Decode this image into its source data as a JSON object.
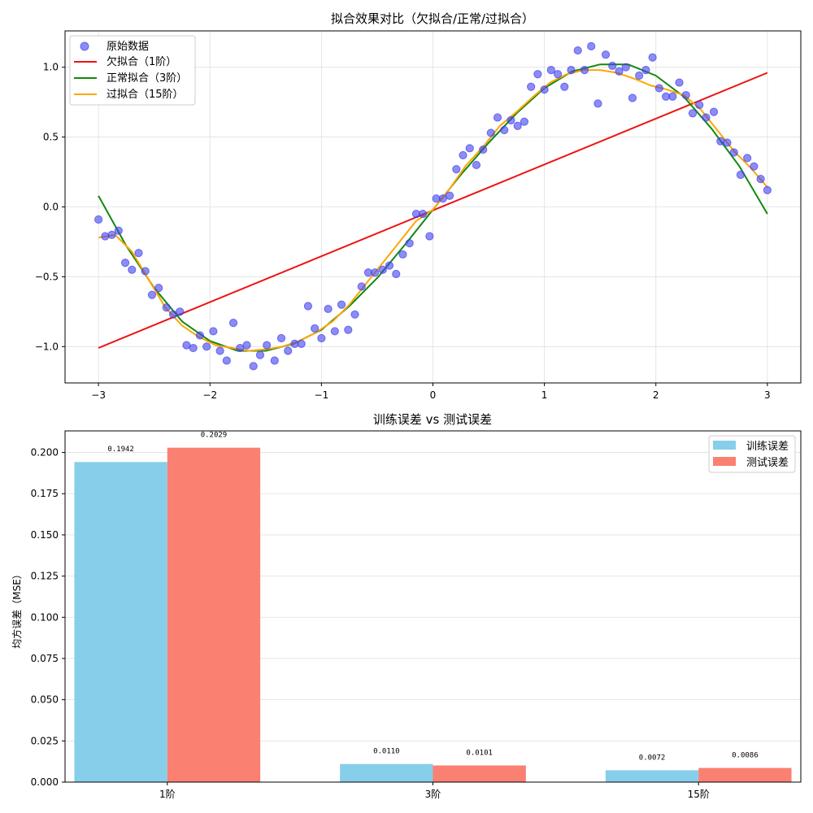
{
  "chart_data": [
    {
      "type": "scatter",
      "title": "拟合效果对比（欠拟合/正常/过拟合）",
      "xlabel": "",
      "ylabel": "",
      "xlim": [
        -3.3,
        3.3
      ],
      "ylim": [
        -1.26,
        1.26
      ],
      "xticks": [
        -3,
        -2,
        -1,
        0,
        1,
        2,
        3
      ],
      "xtick_labels": [
        "−3",
        "−2",
        "−1",
        "0",
        "1",
        "2",
        "3"
      ],
      "yticks": [
        -1.0,
        -0.5,
        0.0,
        0.5,
        1.0
      ],
      "ytick_labels": [
        "−1.0",
        "−0.5",
        "0.0",
        "0.5",
        "1.0"
      ],
      "grid": true,
      "legend_position": "top-left",
      "scatter": {
        "name": "原始数据",
        "color": "#4040ee",
        "x": [
          -3.0,
          -2.94,
          -2.88,
          -2.82,
          -2.76,
          -2.7,
          -2.64,
          -2.58,
          -2.52,
          -2.46,
          -2.39,
          -2.33,
          -2.27,
          -2.21,
          -2.15,
          -2.09,
          -2.03,
          -1.97,
          -1.91,
          -1.85,
          -1.79,
          -1.73,
          -1.67,
          -1.61,
          -1.55,
          -1.49,
          -1.42,
          -1.36,
          -1.3,
          -1.24,
          -1.18,
          -1.12,
          -1.06,
          -1.0,
          -0.94,
          -0.88,
          -0.82,
          -0.76,
          -0.7,
          -0.64,
          -0.58,
          -0.52,
          -0.45,
          -0.39,
          -0.33,
          -0.27,
          -0.21,
          -0.15,
          -0.09,
          -0.03,
          0.03,
          0.09,
          0.15,
          0.21,
          0.27,
          0.33,
          0.39,
          0.45,
          0.52,
          0.58,
          0.64,
          0.7,
          0.76,
          0.82,
          0.88,
          0.94,
          1.0,
          1.06,
          1.12,
          1.18,
          1.24,
          1.3,
          1.36,
          1.42,
          1.48,
          1.55,
          1.61,
          1.67,
          1.73,
          1.79,
          1.85,
          1.91,
          1.97,
          2.03,
          2.09,
          2.15,
          2.21,
          2.27,
          2.33,
          2.39,
          2.45,
          2.52,
          2.58,
          2.64,
          2.7,
          2.76,
          2.82,
          2.88,
          2.94,
          3.0
        ],
        "y": [
          -0.09,
          -0.21,
          -0.2,
          -0.17,
          -0.4,
          -0.45,
          -0.33,
          -0.46,
          -0.63,
          -0.58,
          -0.72,
          -0.77,
          -0.75,
          -0.99,
          -1.01,
          -0.92,
          -1.0,
          -0.89,
          -1.03,
          -1.1,
          -0.83,
          -1.01,
          -0.99,
          -1.14,
          -1.06,
          -0.99,
          -1.1,
          -0.94,
          -1.03,
          -0.98,
          -0.98,
          -0.71,
          -0.87,
          -0.94,
          -0.73,
          -0.89,
          -0.7,
          -0.88,
          -0.77,
          -0.57,
          -0.47,
          -0.47,
          -0.45,
          -0.42,
          -0.48,
          -0.34,
          -0.26,
          -0.05,
          -0.05,
          -0.21,
          0.06,
          0.06,
          0.08,
          0.27,
          0.37,
          0.42,
          0.3,
          0.41,
          0.53,
          0.64,
          0.55,
          0.62,
          0.58,
          0.61,
          0.86,
          0.95,
          0.84,
          0.98,
          0.95,
          0.86,
          0.98,
          1.12,
          0.98,
          1.15,
          0.74,
          1.09,
          1.01,
          0.97,
          1.0,
          0.78,
          0.94,
          0.98,
          1.07,
          0.85,
          0.79,
          0.79,
          0.89,
          0.8,
          0.67,
          0.73,
          0.64,
          0.68,
          0.47,
          0.46,
          0.39,
          0.23,
          0.35,
          0.29,
          0.2,
          0.12
        ]
      },
      "series": [
        {
          "name": "欠拟合（1阶）",
          "color": "#ee1111",
          "x": [
            -3.0,
            3.0
          ],
          "y": [
            -1.01,
            0.96
          ]
        },
        {
          "name": "正常拟合（3阶）",
          "color": "#118811",
          "x": [
            -3.0,
            -2.75,
            -2.5,
            -2.25,
            -2.0,
            -1.75,
            -1.5,
            -1.25,
            -1.0,
            -0.75,
            -0.5,
            -0.25,
            0.0,
            0.25,
            0.5,
            0.75,
            1.0,
            1.25,
            1.5,
            1.75,
            2.0,
            2.25,
            2.5,
            2.75,
            3.0
          ],
          "y": [
            0.08,
            -0.28,
            -0.58,
            -0.82,
            -0.96,
            -1.03,
            -1.03,
            -0.98,
            -0.88,
            -0.71,
            -0.51,
            -0.27,
            -0.02,
            0.23,
            0.46,
            0.67,
            0.85,
            0.97,
            1.02,
            1.02,
            0.94,
            0.79,
            0.56,
            0.29,
            -0.05
          ]
        },
        {
          "name": "过拟合（15阶）",
          "color": "#ffa500",
          "x": [
            -3.0,
            -2.85,
            -2.7,
            -2.55,
            -2.4,
            -2.25,
            -2.1,
            -1.95,
            -1.8,
            -1.65,
            -1.5,
            -1.35,
            -1.2,
            -1.05,
            -0.9,
            -0.75,
            -0.6,
            -0.45,
            -0.3,
            -0.15,
            0.0,
            0.15,
            0.3,
            0.45,
            0.6,
            0.75,
            0.9,
            1.05,
            1.2,
            1.35,
            1.5,
            1.65,
            1.8,
            1.95,
            2.1,
            2.25,
            2.4,
            2.55,
            2.7,
            2.85,
            3.0
          ],
          "y": [
            -0.22,
            -0.2,
            -0.32,
            -0.52,
            -0.72,
            -0.85,
            -0.93,
            -0.99,
            -1.01,
            -1.03,
            -1.02,
            -1.0,
            -0.96,
            -0.9,
            -0.82,
            -0.7,
            -0.55,
            -0.4,
            -0.25,
            -0.1,
            -0.02,
            0.13,
            0.3,
            0.43,
            0.58,
            0.68,
            0.79,
            0.89,
            0.95,
            0.98,
            0.98,
            0.96,
            0.92,
            0.87,
            0.84,
            0.8,
            0.7,
            0.55,
            0.4,
            0.28,
            0.14
          ]
        }
      ]
    },
    {
      "type": "bar",
      "title": "训练误差 vs 测试误差",
      "xlabel": "",
      "ylabel": "均方误差（MSE）",
      "ylim": [
        0,
        0.2131
      ],
      "yticks": [
        0.0,
        0.025,
        0.05,
        0.075,
        0.1,
        0.125,
        0.15,
        0.175,
        0.2
      ],
      "ytick_labels": [
        "0.000",
        "0.025",
        "0.050",
        "0.075",
        "0.100",
        "0.125",
        "0.150",
        "0.175",
        "0.200"
      ],
      "grid": true,
      "legend_position": "top-right",
      "categories": [
        "1阶",
        "3阶",
        "15阶"
      ],
      "series": [
        {
          "name": "训练误差",
          "color": "#87ceeb",
          "values": [
            0.1942,
            0.011,
            0.0072
          ],
          "labels": [
            "0.1942",
            "0.0110",
            "0.0072"
          ]
        },
        {
          "name": "测试误差",
          "color": "#fa8072",
          "values": [
            0.2029,
            0.0101,
            0.0086
          ],
          "labels": [
            "0.2029",
            "0.0101",
            "0.0086"
          ]
        }
      ]
    }
  ]
}
